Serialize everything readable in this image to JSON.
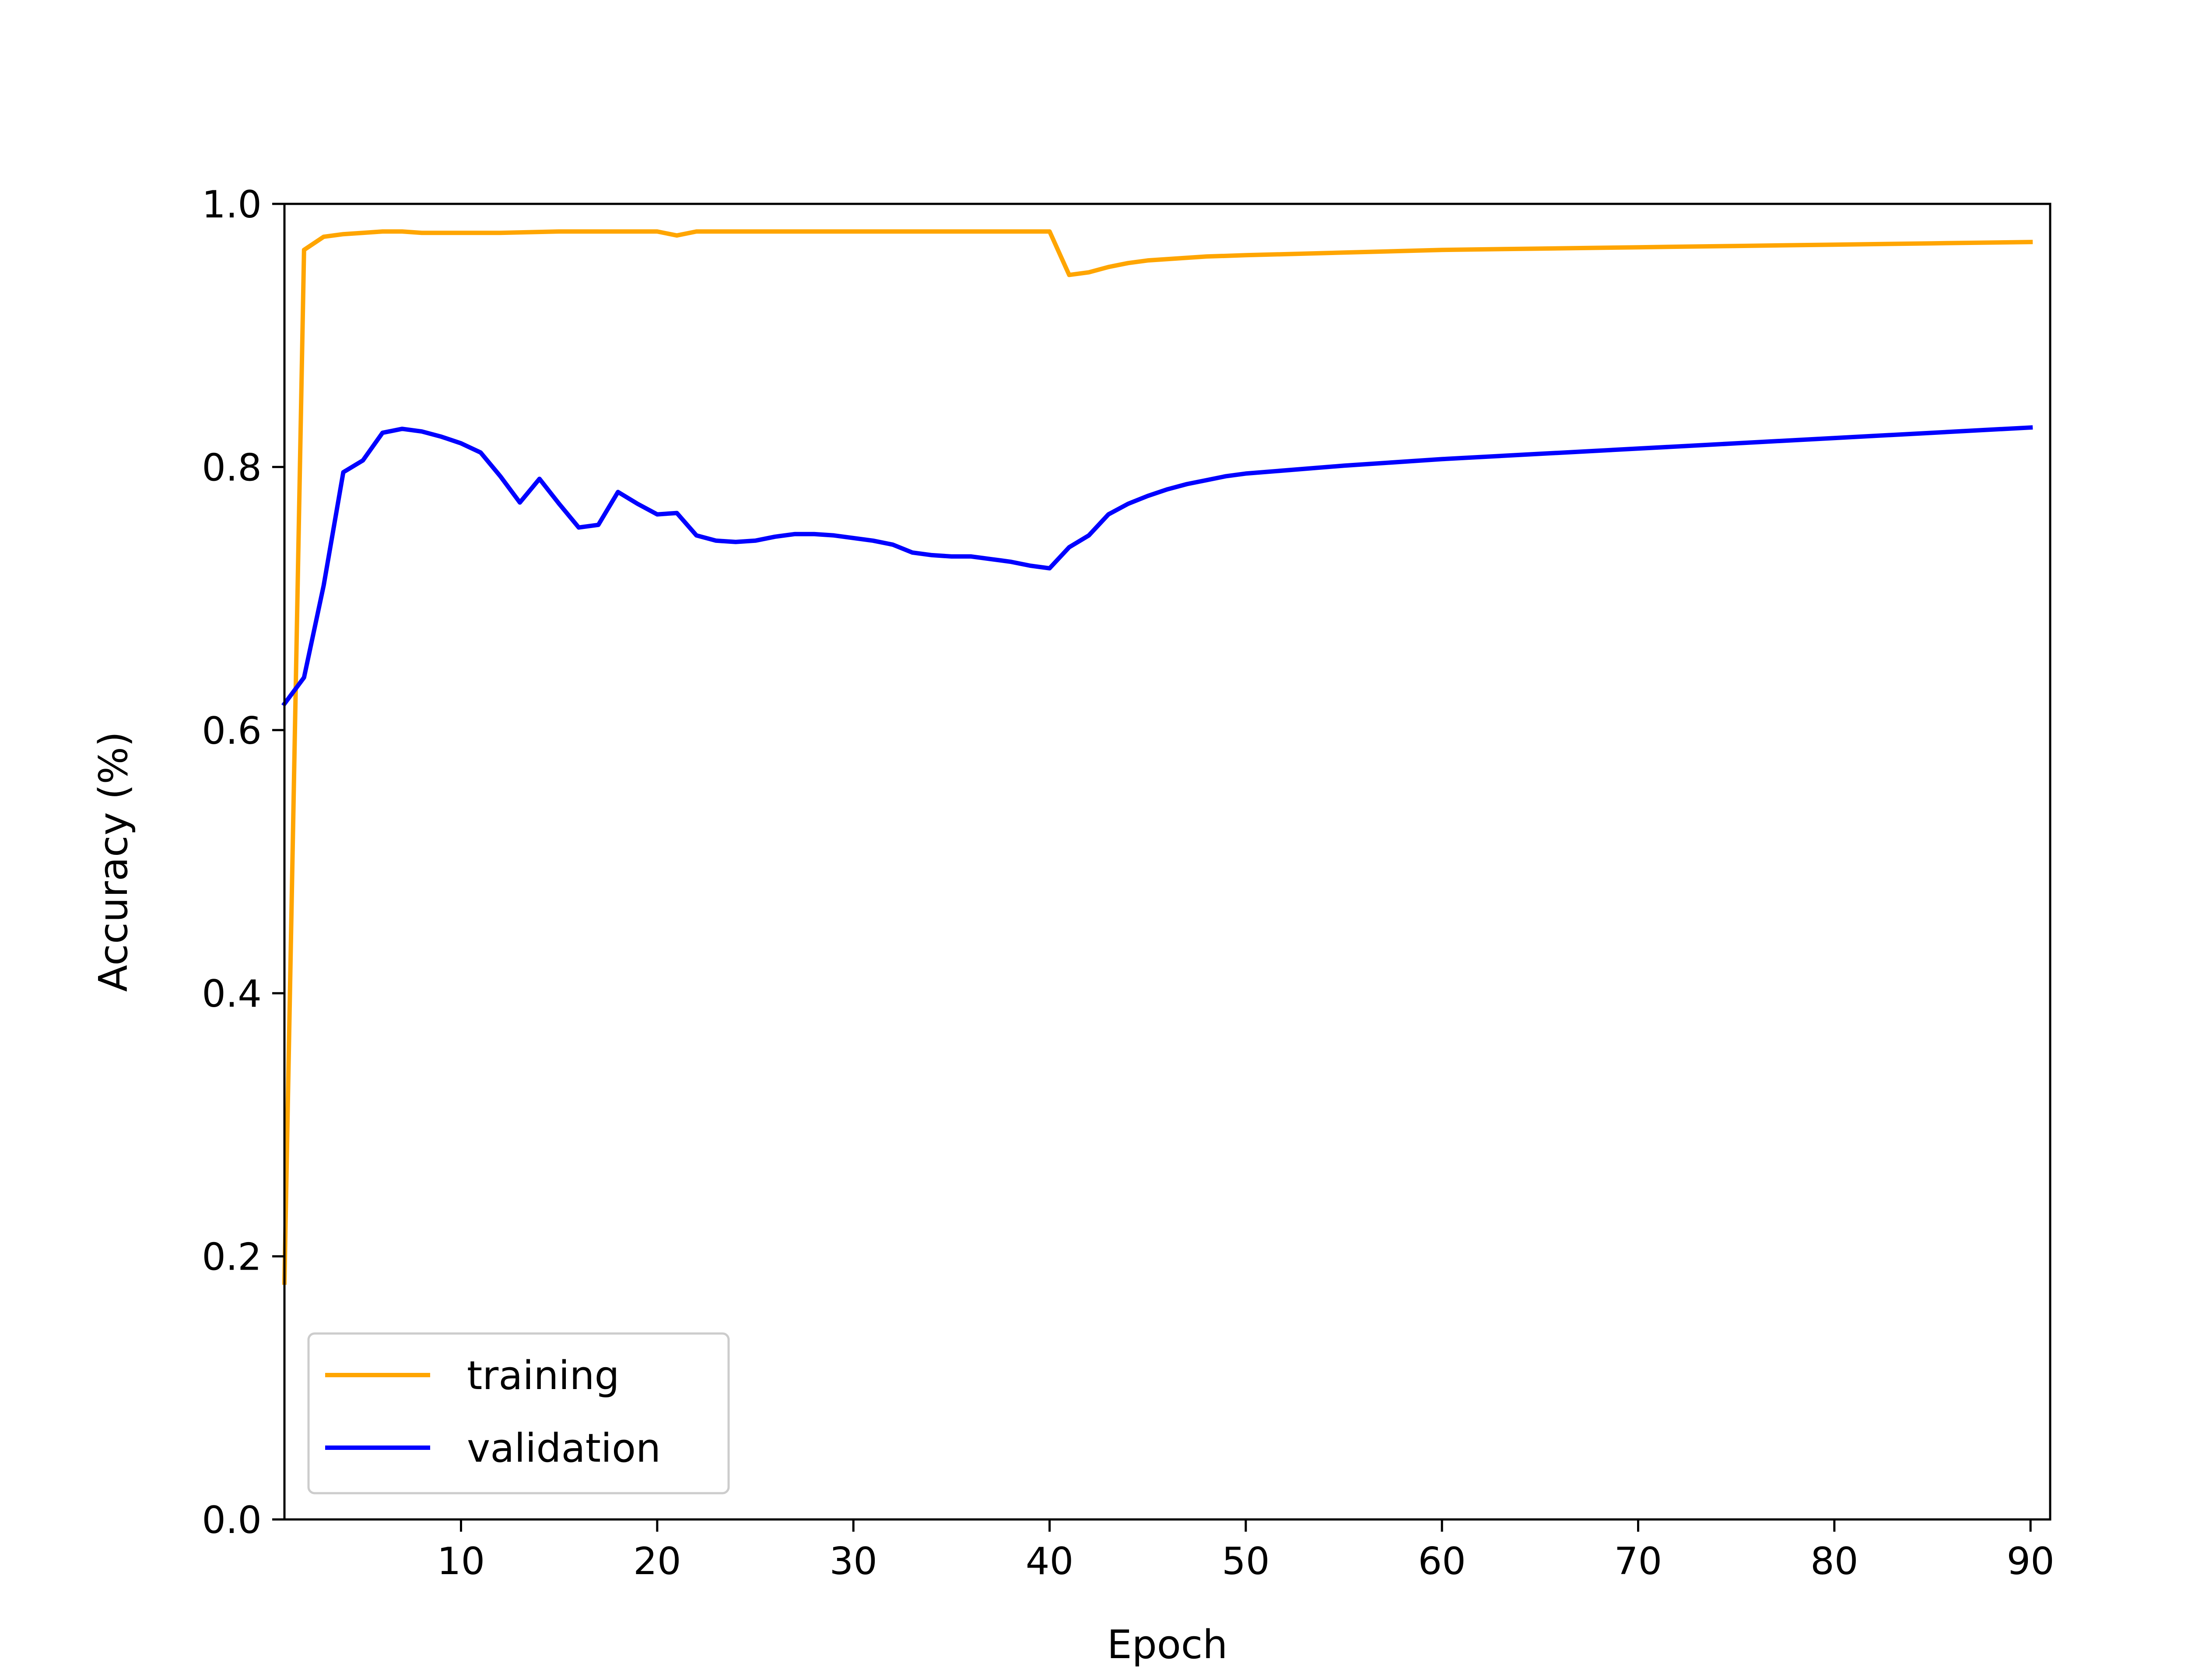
{
  "chart_data": {
    "type": "line",
    "title": "",
    "xlabel": "Epoch",
    "ylabel": "Accuracy (%)",
    "xlim": [
      1,
      91
    ],
    "ylim": [
      0.0,
      1.0
    ],
    "xticks": [
      10,
      20,
      30,
      40,
      50,
      60,
      70,
      80,
      90
    ],
    "xtick_labels": [
      "10",
      "20",
      "30",
      "40",
      "50",
      "60",
      "70",
      "80",
      "90"
    ],
    "yticks": [
      0.0,
      0.2,
      0.4,
      0.6,
      0.8,
      1.0
    ],
    "ytick_labels": [
      "0.0",
      "0.2",
      "0.4",
      "0.6",
      "0.8",
      "1.0"
    ],
    "grid": false,
    "legend_position": "lower-left",
    "series": [
      {
        "name": "training",
        "color": "#FFA500",
        "x": [
          1,
          2,
          3,
          4,
          5,
          6,
          7,
          8,
          9,
          10,
          12,
          15,
          18,
          20,
          21,
          22,
          23,
          25,
          30,
          35,
          40,
          41,
          42,
          43,
          44,
          45,
          46,
          47,
          48,
          50,
          55,
          60,
          65,
          70,
          75,
          80,
          85,
          90
        ],
        "y": [
          0.18,
          0.965,
          0.975,
          0.977,
          0.978,
          0.979,
          0.979,
          0.978,
          0.978,
          0.978,
          0.978,
          0.979,
          0.979,
          0.979,
          0.976,
          0.979,
          0.979,
          0.979,
          0.979,
          0.979,
          0.979,
          0.946,
          0.948,
          0.952,
          0.955,
          0.957,
          0.958,
          0.959,
          0.96,
          0.961,
          0.963,
          0.965,
          0.966,
          0.967,
          0.968,
          0.969,
          0.97,
          0.971
        ]
      },
      {
        "name": "validation",
        "color": "#0000FF",
        "x": [
          1,
          2,
          3,
          4,
          5,
          6,
          7,
          8,
          9,
          10,
          11,
          12,
          13,
          14,
          15,
          16,
          17,
          18,
          19,
          20,
          21,
          22,
          23,
          24,
          25,
          26,
          27,
          28,
          29,
          30,
          31,
          32,
          33,
          34,
          35,
          36,
          37,
          38,
          39,
          40,
          41,
          42,
          43,
          44,
          45,
          46,
          47,
          48,
          49,
          50,
          55,
          60,
          65,
          70,
          75,
          80,
          85,
          90
        ],
        "y": [
          0.62,
          0.64,
          0.71,
          0.796,
          0.805,
          0.826,
          0.829,
          0.827,
          0.823,
          0.818,
          0.811,
          0.793,
          0.773,
          0.791,
          0.772,
          0.754,
          0.756,
          0.781,
          0.772,
          0.764,
          0.765,
          0.748,
          0.744,
          0.743,
          0.744,
          0.747,
          0.749,
          0.749,
          0.748,
          0.746,
          0.744,
          0.741,
          0.735,
          0.733,
          0.732,
          0.732,
          0.73,
          0.728,
          0.725,
          0.723,
          0.739,
          0.748,
          0.764,
          0.772,
          0.778,
          0.783,
          0.787,
          0.79,
          0.793,
          0.795,
          0.801,
          0.806,
          0.81,
          0.814,
          0.818,
          0.822,
          0.826,
          0.83
        ]
      }
    ]
  }
}
